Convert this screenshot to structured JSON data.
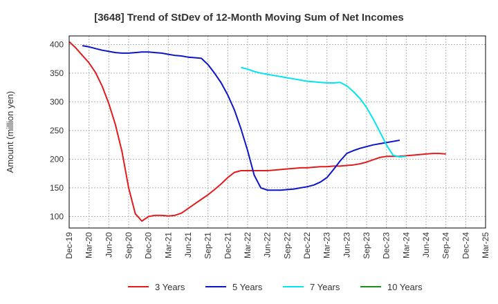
{
  "chart_data": {
    "type": "line",
    "title": "[3648]  Trend of StDev of 12-Month Moving Sum of Net Incomes",
    "ylabel": "Amount (million yen)",
    "xlabel": "",
    "ylim": [
      80,
      415
    ],
    "yticks": [
      100,
      150,
      200,
      250,
      300,
      350,
      400
    ],
    "grid": true,
    "legend_position": "bottom",
    "x_categories": [
      "Dec-19",
      "Mar-20",
      "Jun-20",
      "Sep-20",
      "Dec-20",
      "Mar-21",
      "Jun-21",
      "Sep-21",
      "Dec-21",
      "Mar-22",
      "Jun-22",
      "Sep-22",
      "Dec-22",
      "Mar-23",
      "Jun-23",
      "Sep-23",
      "Dec-23",
      "Mar-24",
      "Jun-24",
      "Sep-24",
      "Dec-24",
      "Mar-25"
    ],
    "series": [
      {
        "name": "3 Years",
        "color": "#e31a1c",
        "start_index": 0,
        "values": [
          405,
          394,
          381,
          368,
          351,
          327,
          297,
          260,
          213,
          150,
          105,
          92,
          100,
          102,
          102,
          101,
          102,
          106,
          114,
          122,
          130,
          138,
          147,
          157,
          168,
          177,
          180,
          180,
          180,
          180,
          180,
          181,
          182,
          183,
          184,
          185,
          185,
          186,
          187,
          187,
          188,
          188,
          189,
          190,
          192,
          195,
          199,
          203,
          205,
          205,
          205,
          206,
          207,
          208,
          209,
          210,
          210,
          209
        ]
      },
      {
        "name": "5 Years",
        "color": "#0a14c8",
        "start_index": 2,
        "values": [
          398,
          396,
          393,
          390,
          388,
          386,
          385,
          385,
          386,
          387,
          387,
          386,
          385,
          383,
          381,
          380,
          378,
          377,
          376,
          365,
          350,
          333,
          312,
          286,
          253,
          215,
          172,
          150,
          146,
          146,
          146,
          147,
          148,
          150,
          152,
          155,
          160,
          168,
          182,
          197,
          210,
          215,
          219,
          222,
          225,
          227,
          229,
          231,
          233
        ]
      },
      {
        "name": "7 Years",
        "color": "#00e5ee",
        "start_index": 26,
        "values": [
          360,
          357,
          353,
          350,
          348,
          346,
          344,
          342,
          340,
          338,
          336,
          335,
          334,
          333,
          333,
          334,
          328,
          318,
          306,
          290,
          270,
          248,
          225,
          207,
          204,
          205
        ]
      },
      {
        "name": "10 Years",
        "color": "#1a8c1a",
        "start_index": 0,
        "values": []
      }
    ]
  }
}
